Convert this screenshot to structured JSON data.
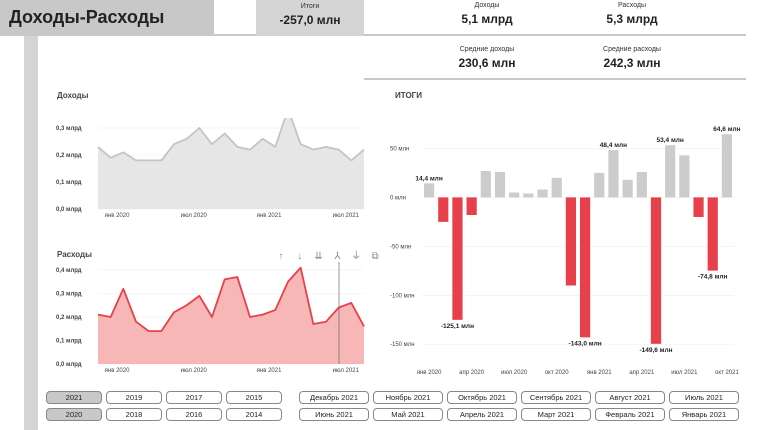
{
  "header": {
    "title": "Доходы-Расходы"
  },
  "kpis": {
    "total": {
      "label": "Итоги",
      "value": "-257,0 млн"
    },
    "income": {
      "label": "Доходы",
      "value": "5,1 млрд"
    },
    "expense": {
      "label": "Расходы",
      "value": "5,3 млрд"
    },
    "avg_income": {
      "label": "Средние доходы",
      "value": "230,6 млн"
    },
    "avg_expense": {
      "label": "Средние расходы",
      "value": "242,3 млн"
    }
  },
  "toolbar_icons": [
    "arrow-up-icon",
    "arrow-down-icon",
    "double-arrow-down-icon",
    "expand-hierarchy-icon",
    "filter-icon",
    "focus-mode-icon"
  ],
  "colors": {
    "income_fill": "#e6e6e6",
    "income_line": "#c4c4c4",
    "expense_fill": "#f7b7b7",
    "expense_line": "#e8404a",
    "bar_pos": "#cccccc",
    "bar_neg": "#e8404a"
  },
  "chart_data": [
    {
      "type": "area",
      "title": "Доходы",
      "y_ticks": [
        "0,0 млрд",
        "0,1 млрд",
        "0,2 млрд",
        "0,3 млрд"
      ],
      "ylim": [
        0,
        0.3
      ],
      "x_ticks": [
        "янв 2020",
        "июл 2020",
        "янв 2021",
        "июл 2021"
      ],
      "series": [
        {
          "values": [
            0.23,
            0.19,
            0.21,
            0.18,
            0.18,
            0.18,
            0.24,
            0.26,
            0.3,
            0.24,
            0.28,
            0.23,
            0.22,
            0.26,
            0.23,
            0.37,
            0.24,
            0.22,
            0.23,
            0.22,
            0.18,
            0.22
          ]
        }
      ]
    },
    {
      "type": "area",
      "title": "Расходы",
      "y_ticks": [
        "0,0 млрд",
        "0,1 млрд",
        "0,2 млрд",
        "0,3 млрд",
        "0,4 млрд"
      ],
      "ylim": [
        0,
        0.4
      ],
      "x_ticks": [
        "янв 2020",
        "июл 2020",
        "янв 2021",
        "июл 2021"
      ],
      "series": [
        {
          "values": [
            0.21,
            0.2,
            0.32,
            0.18,
            0.14,
            0.14,
            0.22,
            0.25,
            0.29,
            0.2,
            0.36,
            0.37,
            0.2,
            0.21,
            0.23,
            0.35,
            0.41,
            0.17,
            0.18,
            0.24,
            0.26,
            0.16
          ]
        }
      ]
    },
    {
      "type": "bar",
      "title": "ИТОГИ",
      "y_ticks": [
        "-150 млн",
        "-100 млн",
        "-50 млн",
        "0 млн",
        "50 млн"
      ],
      "ylim": [
        -160,
        75
      ],
      "x_ticks": [
        "янв 2020",
        "апр 2020",
        "июл 2020",
        "окт 2020",
        "янв 2021",
        "апр 2021",
        "июл 2021",
        "окт 2021"
      ],
      "values": [
        14.4,
        -25,
        -125.1,
        -18,
        27,
        26,
        5,
        4,
        8,
        20,
        -90,
        -143.0,
        25,
        48.4,
        18,
        26,
        -149.6,
        53.4,
        43,
        -20,
        -74.8,
        64.6
      ],
      "data_labels": [
        {
          "index": 0,
          "text": "14,4 млн"
        },
        {
          "index": 2,
          "text": "-125,1 млн"
        },
        {
          "index": 11,
          "text": "-143,0 млн"
        },
        {
          "index": 13,
          "text": "48,4 млн"
        },
        {
          "index": 16,
          "text": "-149,6 млн"
        },
        {
          "index": 17,
          "text": "53,4 млн"
        },
        {
          "index": 20,
          "text": "-74,8 млн"
        },
        {
          "index": 21,
          "text": "64,6 млн"
        }
      ]
    }
  ],
  "year_slicer": {
    "row1": [
      "2021",
      "2019",
      "2017",
      "2015"
    ],
    "row2": [
      "2020",
      "2018",
      "2016",
      "2014"
    ],
    "selected": [
      "2021",
      "2020"
    ]
  },
  "month_slicer": {
    "row1": [
      "Декабрь 2021",
      "Ноябрь 2021",
      "Октябрь 2021",
      "Сентябрь 2021",
      "Август 2021",
      "Июль 2021"
    ],
    "row2": [
      "Июнь 2021",
      "Май 2021",
      "Апрель 2021",
      "Март 2021",
      "Февраль 2021",
      "Январь 2021"
    ]
  }
}
